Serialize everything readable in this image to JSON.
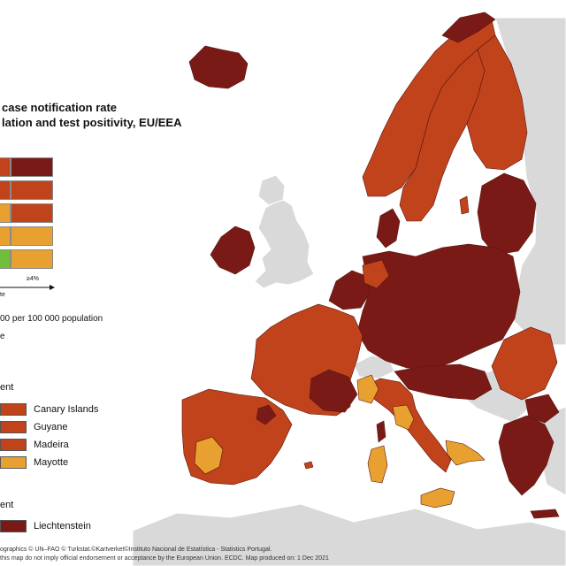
{
  "title": {
    "line1": "case notification rate",
    "line2": "lation and test positivity, EU/EEA"
  },
  "colors": {
    "sea": "#ffffff",
    "non_eu_land": "#d9d9d9",
    "dark_red": "#7a1a16",
    "red": "#c0431b",
    "orange": "#e8a030",
    "green": "#6fbf3a",
    "border": "#5a1510"
  },
  "legend": {
    "matrix_axis_label": "≥4%",
    "matrix_axis_caption": "te",
    "threshold_text": "00 per 100 000 population",
    "threshold_text2": "e",
    "outermost_heading": "ent",
    "outermost_regions": [
      {
        "label": "Canary Islands",
        "color": "#c0431b"
      },
      {
        "label": "Guyane",
        "color": "#c0431b"
      },
      {
        "label": "Madeira",
        "color": "#c0431b"
      },
      {
        "label": "Mayotte",
        "color": "#e8a030"
      }
    ],
    "small_states_heading": "ent",
    "small_states": [
      {
        "label": "Liechtenstein",
        "color": "#7a1a16"
      }
    ],
    "matrix_rows": [
      [
        "#c0431b",
        "#7a1a16"
      ],
      [
        "#c0431b",
        "#c0431b"
      ],
      [
        "#e8a030",
        "#c0431b"
      ],
      [
        "#e8a030",
        "#e8a030"
      ],
      [
        "#6fbf3a",
        "#e8a030"
      ]
    ]
  },
  "regions": {
    "iceland": "#7a1a16",
    "ireland": "#7a1a16",
    "norway": "#c0431b",
    "norway_north": "#7a1a16",
    "sweden": "#c0431b",
    "finland": "#c0431b",
    "estonia_latvia_lithuania": "#7a1a16",
    "denmark": "#7a1a16",
    "poland_central": "#7a1a16",
    "germany": "#7a1a16",
    "benelux": "#7a1a16",
    "france": "#c0431b",
    "france_east": "#7a1a16",
    "spain": "#c0431b",
    "spain_central": "#e8a030",
    "portugal": "#c0431b",
    "italy_north": "#c0431b",
    "italy_yellow": "#e8a030",
    "sardinia": "#e8a030",
    "corsica": "#7a1a16",
    "sicily": "#e8a030",
    "greece": "#7a1a16",
    "romania_bulgaria": "#c0431b",
    "non_eu": "#d9d9d9"
  },
  "footer": {
    "line1": "ographics © UN–FAO © Turkstat.©Kartverket©Instituto Nacional de Estatística - Statistics Portugal.",
    "line2": "this map do not imply official endorsement or acceptance by the European Union. ECDC. Map produced on: 1 Dec 2021"
  }
}
